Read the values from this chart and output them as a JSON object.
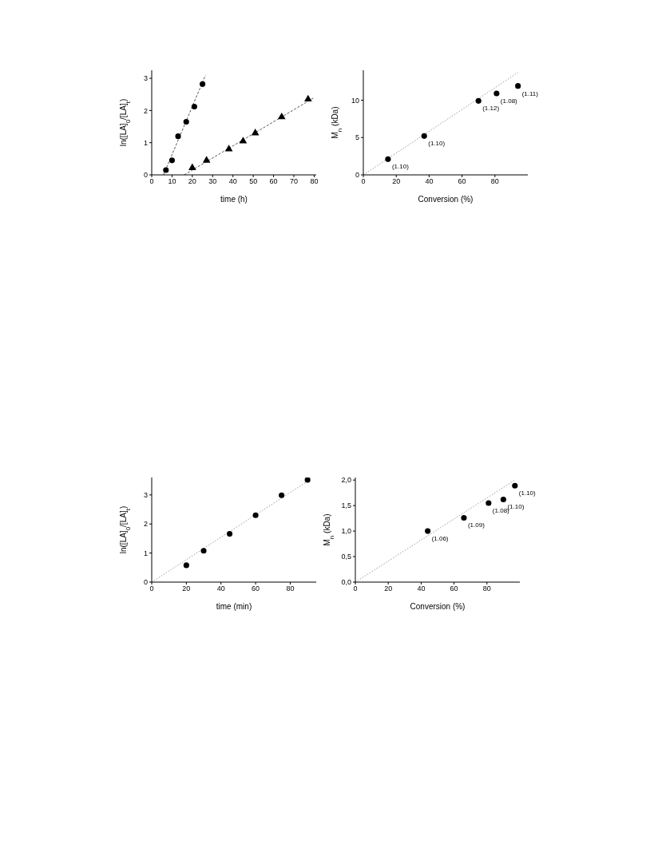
{
  "chart_data": [
    {
      "type": "scatter",
      "xlabel": "time (h)",
      "ylabel": "ln([LA]$_{0}$/[LA]$_{t}$)",
      "xlim": [
        0,
        81
      ],
      "xticks": [
        0,
        10,
        20,
        30,
        40,
        50,
        60,
        70,
        80
      ],
      "ylim": [
        0,
        3.25
      ],
      "yticks": [
        0,
        1,
        2,
        3
      ],
      "grid": false,
      "series": [
        {
          "type": "scatter",
          "marker": "circle",
          "color": "#000000",
          "x": [
            7,
            10,
            13,
            17,
            21,
            25
          ],
          "values": [
            0.15,
            0.45,
            1.2,
            1.65,
            2.12,
            2.82
          ]
        },
        {
          "type": "scatter",
          "marker": "triangle",
          "color": "#000000",
          "x": [
            20,
            27,
            38,
            45,
            51,
            64,
            77
          ],
          "values": [
            0.22,
            0.45,
            0.8,
            1.05,
            1.3,
            1.8,
            2.35
          ]
        },
        {
          "type": "line",
          "marker": "none",
          "line_style": "dashed",
          "color": "#555555",
          "x": [
            5.8,
            26.5
          ],
          "values": [
            0,
            3.1
          ]
        },
        {
          "type": "line",
          "marker": "none",
          "line_style": "dashed",
          "color": "#555555",
          "x": [
            16,
            80
          ],
          "values": [
            0,
            2.4
          ]
        }
      ]
    },
    {
      "type": "scatter",
      "xlabel": "Conversion (%)",
      "ylabel": "M$_{n}$ (kDa)",
      "xlim": [
        0,
        100
      ],
      "xticks": [
        0,
        20,
        40,
        60,
        80
      ],
      "ylim": [
        0,
        14
      ],
      "yticks": [
        0,
        5,
        10
      ],
      "grid": false,
      "series": [
        {
          "type": "scatter",
          "marker": "circle",
          "color": "#000000",
          "x": [
            15,
            37,
            70,
            81,
            94
          ],
          "values": [
            2.1,
            5.2,
            9.9,
            10.9,
            11.9
          ]
        },
        {
          "type": "line",
          "marker": "none",
          "line_style": "dotted",
          "color": "#999999",
          "x": [
            0,
            94
          ],
          "values": [
            0,
            13.7
          ]
        }
      ],
      "annotations": [
        {
          "text": "(1.10)",
          "x": 15,
          "y": 2.1
        },
        {
          "text": "(1.10)",
          "x": 37,
          "y": 5.2
        },
        {
          "text": "(1.12)",
          "x": 70,
          "y": 9.9
        },
        {
          "text": "(1.08)",
          "x": 81,
          "y": 10.9
        },
        {
          "text": "(1.11)",
          "x": 94,
          "y": 11.9
        }
      ]
    },
    {
      "type": "scatter",
      "xlabel": "time (min)",
      "ylabel": "ln([LA]$_{0}$/[LA]$_{t}$)",
      "xlim": [
        0,
        95
      ],
      "xticks": [
        0,
        20,
        40,
        60,
        80
      ],
      "ylim": [
        0,
        3.6
      ],
      "yticks": [
        0,
        1,
        2,
        3
      ],
      "grid": false,
      "series": [
        {
          "type": "scatter",
          "marker": "circle",
          "color": "#000000",
          "x": [
            20,
            30,
            45,
            60,
            75,
            90
          ],
          "values": [
            0.58,
            1.08,
            1.66,
            2.3,
            2.99,
            3.52
          ]
        },
        {
          "type": "line",
          "marker": "none",
          "line_style": "dotted",
          "color": "#999999",
          "x": [
            0,
            92
          ],
          "values": [
            0,
            3.55
          ]
        }
      ]
    },
    {
      "type": "scatter",
      "xlabel": "Conversion (%)",
      "ylabel": "M$_{n}$ (kDa)",
      "xlim": [
        0,
        100
      ],
      "xticks": [
        0,
        20,
        40,
        60,
        80
      ],
      "ylim": [
        0,
        2.05
      ],
      "yticks": [
        {
          "value": 0,
          "label": "0,0"
        },
        {
          "value": 0.5,
          "label": "0,5"
        },
        {
          "value": 1,
          "label": "1,0"
        },
        {
          "value": 1.5,
          "label": "1,5"
        },
        {
          "value": 2,
          "label": "2,0"
        }
      ],
      "grid": false,
      "series": [
        {
          "type": "scatter",
          "marker": "circle",
          "color": "#000000",
          "x": [
            44,
            66,
            81,
            90,
            97
          ],
          "values": [
            1.0,
            1.26,
            1.55,
            1.62,
            1.89
          ]
        },
        {
          "type": "line",
          "marker": "none",
          "line_style": "dotted",
          "color": "#999999",
          "x": [
            0,
            97
          ],
          "values": [
            0,
            2.0
          ]
        }
      ],
      "annotations": [
        {
          "text": "(1.06)",
          "x": 44,
          "y": 1.0
        },
        {
          "text": "(1.09)",
          "x": 66,
          "y": 1.26
        },
        {
          "text": "(1.08)",
          "x": 81,
          "y": 1.55
        },
        {
          "text": "(1.10)",
          "x": 90,
          "y": 1.62
        },
        {
          "text": "(1.10)",
          "x": 97,
          "y": 1.89
        }
      ]
    }
  ]
}
